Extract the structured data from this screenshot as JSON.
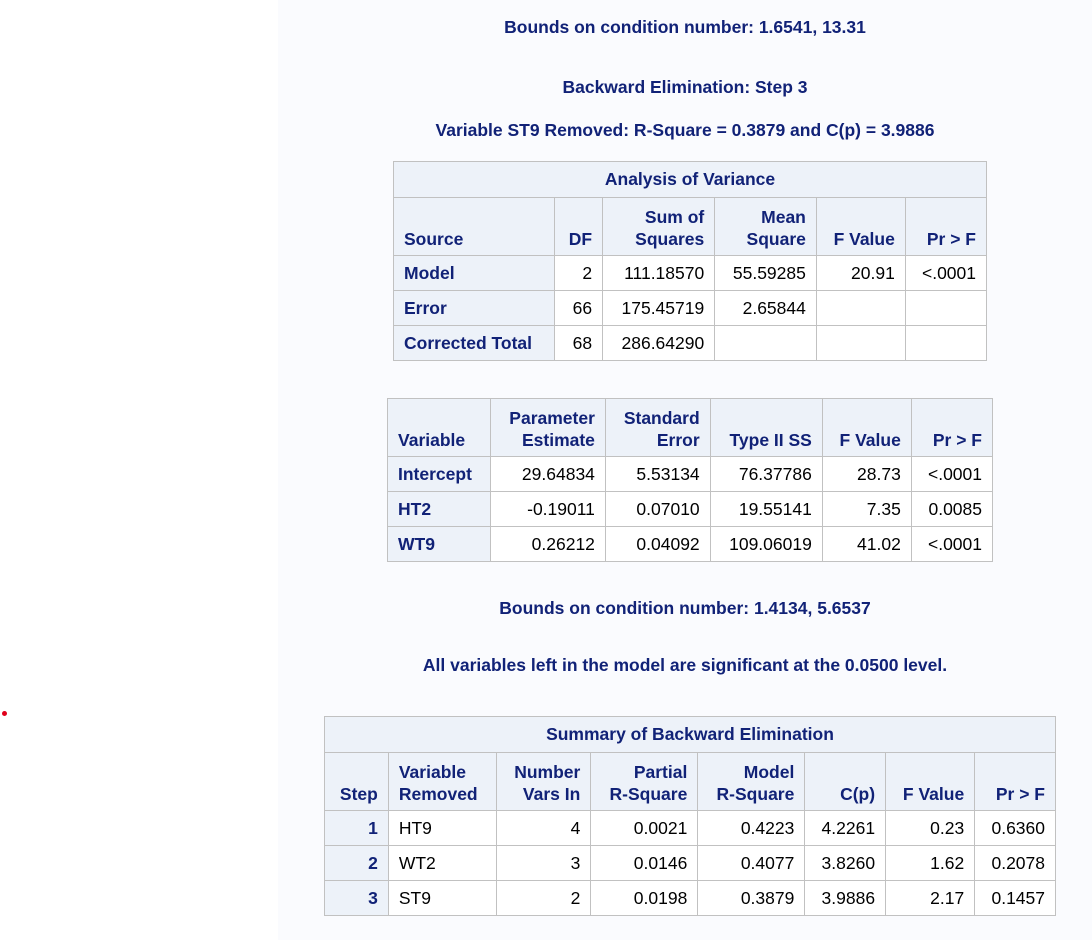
{
  "notes": {
    "bounds1": "Bounds on condition number: 1.6541, 13.31",
    "step_title": "Backward Elimination: Step 3",
    "removed": "Variable ST9 Removed: R-Square = 0.3879 and C(p) = 3.9886",
    "bounds2": "Bounds on condition number: 1.4134, 5.6537",
    "significance": "All variables left in the model are significant at the 0.0500 level."
  },
  "anova": {
    "title": "Analysis of Variance",
    "headers": {
      "source": "Source",
      "df": "DF",
      "ss_line1": "Sum of",
      "ss_line2": "Squares",
      "ms_line1": "Mean",
      "ms_line2": "Square",
      "f": "F Value",
      "p": "Pr > F"
    },
    "rows": [
      {
        "source": "Model",
        "df": "2",
        "ss": "111.18570",
        "ms": "55.59285",
        "f": "20.91",
        "p": "<.0001"
      },
      {
        "source": "Error",
        "df": "66",
        "ss": "175.45719",
        "ms": "2.65844",
        "f": "",
        "p": ""
      },
      {
        "source": "Corrected Total",
        "df": "68",
        "ss": "286.64290",
        "ms": "",
        "f": "",
        "p": ""
      }
    ]
  },
  "params": {
    "headers": {
      "variable": "Variable",
      "est_line1": "Parameter",
      "est_line2": "Estimate",
      "se_line1": "Standard",
      "se_line2": "Error",
      "ss": "Type II SS",
      "f": "F Value",
      "p": "Pr > F"
    },
    "rows": [
      {
        "variable": "Intercept",
        "estimate": "29.64834",
        "se": "5.53134",
        "ss": "76.37786",
        "f": "28.73",
        "p": "<.0001"
      },
      {
        "variable": "HT2",
        "estimate": "-0.19011",
        "se": "0.07010",
        "ss": "19.55141",
        "f": "7.35",
        "p": "0.0085"
      },
      {
        "variable": "WT9",
        "estimate": "0.26212",
        "se": "0.04092",
        "ss": "109.06019",
        "f": "41.02",
        "p": "<.0001"
      }
    ]
  },
  "summary": {
    "title": "Summary of Backward Elimination",
    "headers": {
      "step": "Step",
      "var_line1": "Variable",
      "var_line2": "Removed",
      "num_line1": "Number",
      "num_line2": "Vars In",
      "partial_line1": "Partial",
      "partial_line2": "R-Square",
      "model_line1": "Model",
      "model_line2": "R-Square",
      "cp": "C(p)",
      "f": "F Value",
      "p": "Pr > F"
    },
    "rows": [
      {
        "step": "1",
        "variable": "HT9",
        "vars_in": "4",
        "partial": "0.0021",
        "model": "0.4223",
        "cp": "4.2261",
        "f": "0.23",
        "p": "0.6360"
      },
      {
        "step": "2",
        "variable": "WT2",
        "vars_in": "3",
        "partial": "0.0146",
        "model": "0.4077",
        "cp": "3.8260",
        "f": "1.62",
        "p": "0.2078"
      },
      {
        "step": "3",
        "variable": "ST9",
        "vars_in": "2",
        "partial": "0.0198",
        "model": "0.3879",
        "cp": "3.9886",
        "f": "2.17",
        "p": "0.1457"
      }
    ]
  }
}
